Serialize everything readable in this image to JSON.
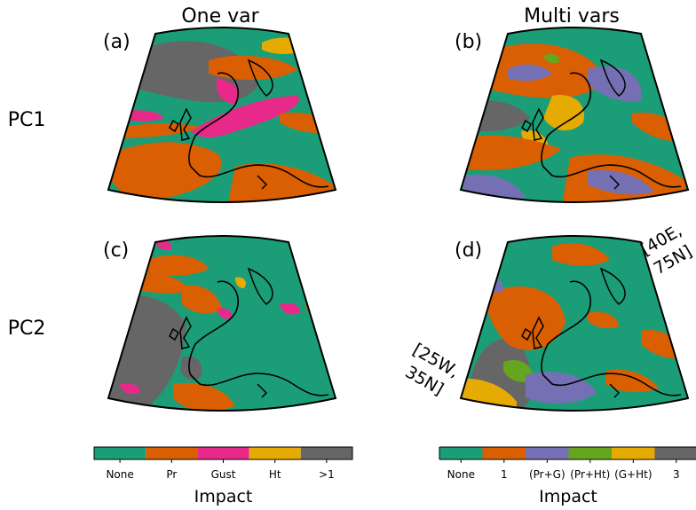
{
  "columns": {
    "left": "One var",
    "right": "Multi vars"
  },
  "rows": {
    "top": "PC1",
    "bottom": "PC2"
  },
  "panels": [
    {
      "tag": "(a)"
    },
    {
      "tag": "(b)"
    },
    {
      "tag": "(c)"
    },
    {
      "tag": "(d)"
    }
  ],
  "corners": {
    "ne_line1": "[40E,",
    "ne_line2": "75N]",
    "sw_line1": "[25W,",
    "sw_line2": "35N]"
  },
  "legend_left": {
    "title": "Impact",
    "items": [
      {
        "label": "None",
        "color": "#1b9e77"
      },
      {
        "label": "Pr",
        "color": "#d95f02"
      },
      {
        "label": "Gust",
        "color": "#e7298a"
      },
      {
        "label": "Ht",
        "color": "#e6ab02"
      },
      {
        "label": ">1",
        "color": "#666666"
      }
    ]
  },
  "legend_right": {
    "title": "Impact",
    "items": [
      {
        "label": "None",
        "color": "#1b9e77"
      },
      {
        "label": "1",
        "color": "#d95f02"
      },
      {
        "label": "(Pr+G)",
        "color": "#7570b3"
      },
      {
        "label": "(Pr+Ht)",
        "color": "#66a61e"
      },
      {
        "label": "(G+Ht)",
        "color": "#e6ab02"
      },
      {
        "label": "3",
        "color": "#666666"
      }
    ]
  }
}
